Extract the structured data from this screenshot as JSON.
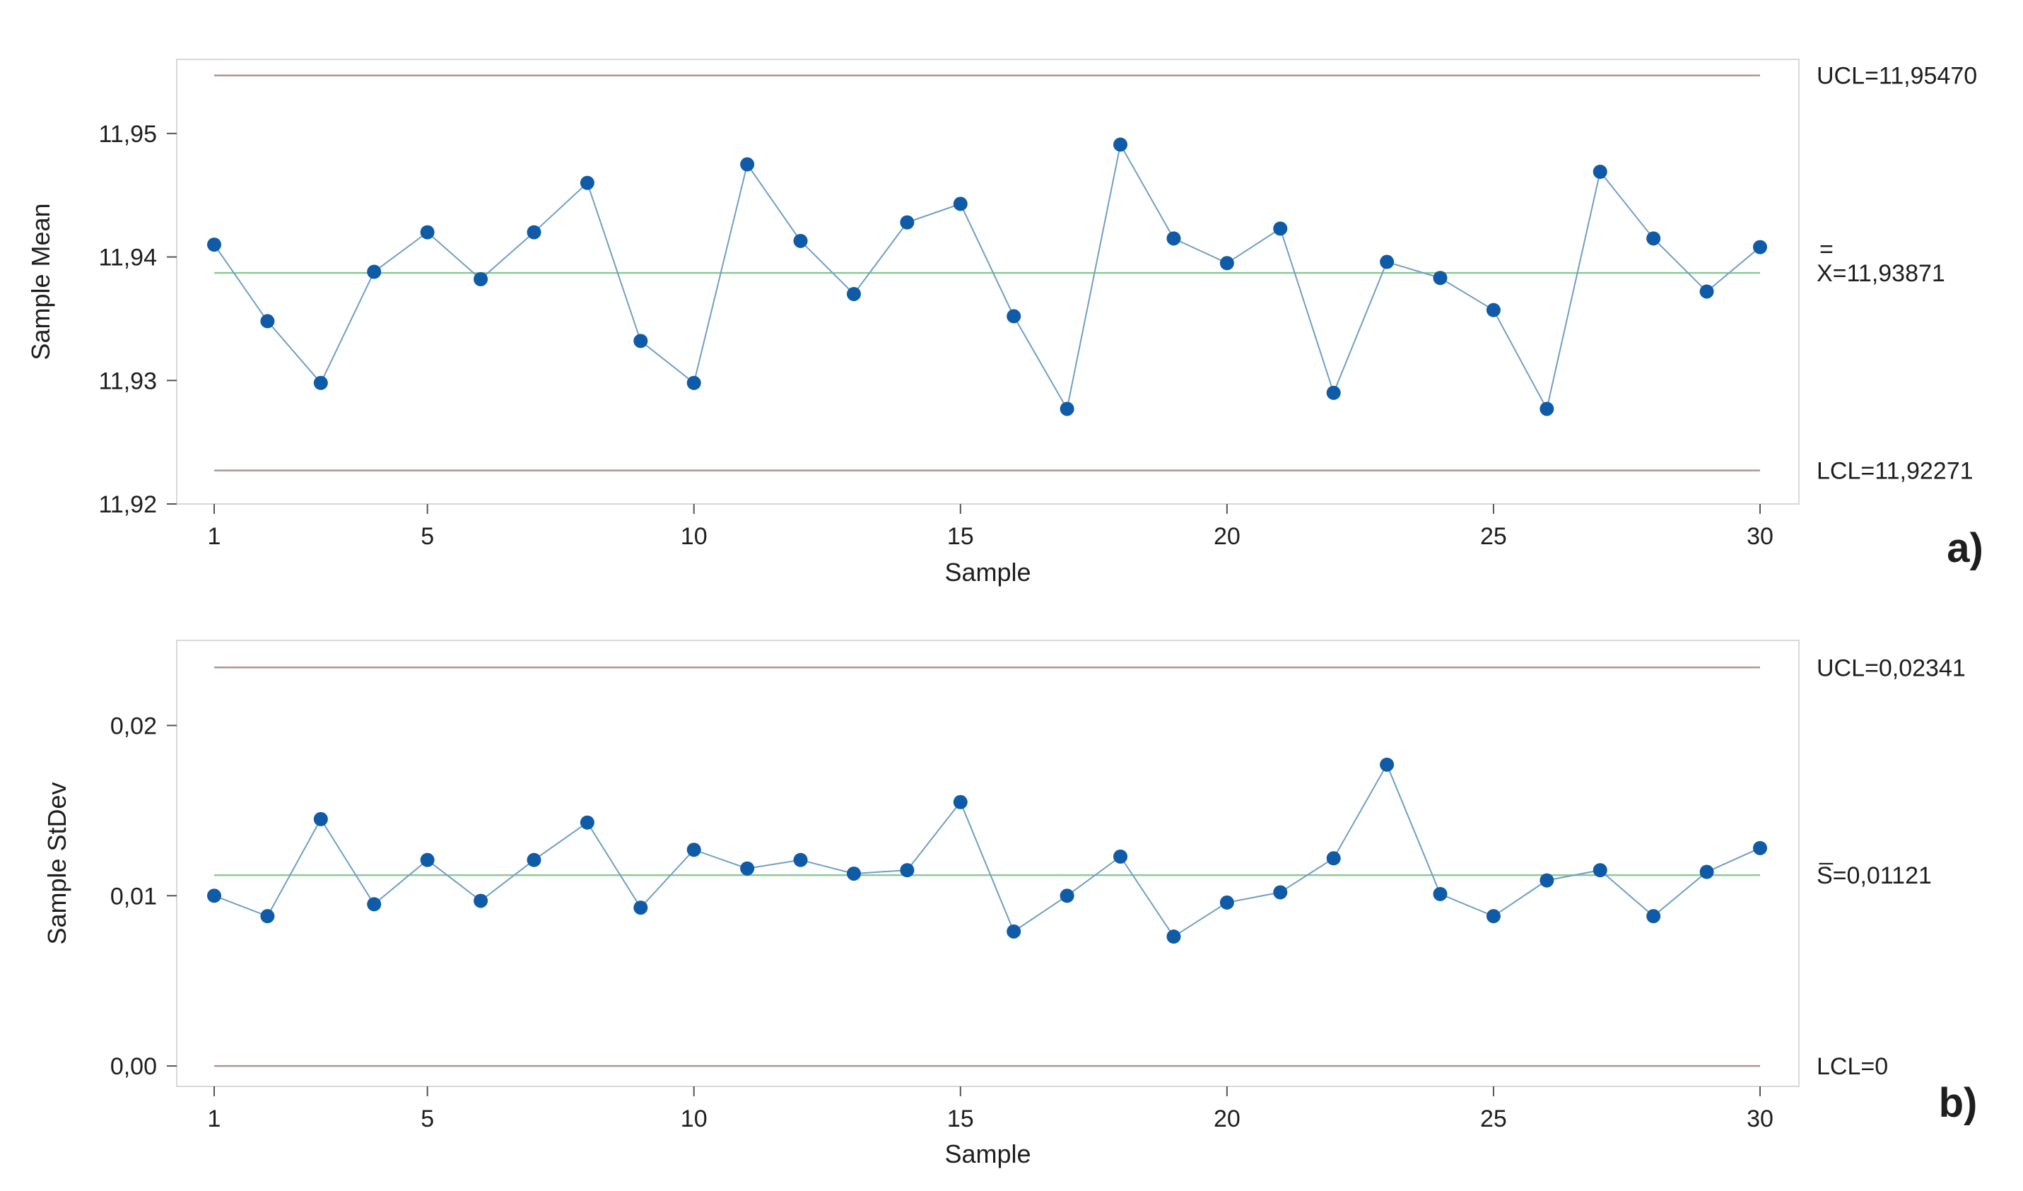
{
  "chart_data": [
    {
      "panel_label": "a)",
      "type": "line",
      "xlabel": "Sample",
      "ylabel": "Sample Mean",
      "x_ticks": [
        "1",
        "5",
        "10",
        "15",
        "20",
        "25",
        "30"
      ],
      "y_ticks": [
        "11,92",
        "11,93",
        "11,94",
        "11,95"
      ],
      "xlim": [
        1,
        30
      ],
      "ylim": [
        11.92,
        11.956
      ],
      "grid": false,
      "control_limits": {
        "ucl": {
          "label": "UCL=11,95470",
          "value": 11.9547
        },
        "center": {
          "label": "X=11,93871",
          "overline_mark": "=",
          "value": 11.93871
        },
        "lcl": {
          "label": "LCL=11,92271",
          "value": 11.92271
        }
      },
      "x": [
        1,
        2,
        3,
        4,
        5,
        6,
        7,
        8,
        9,
        10,
        11,
        12,
        13,
        14,
        15,
        16,
        17,
        18,
        19,
        20,
        21,
        22,
        23,
        24,
        25,
        26,
        27,
        28,
        29,
        30
      ],
      "values": [
        11.941,
        11.9348,
        11.9298,
        11.9388,
        11.942,
        11.9382,
        11.942,
        11.946,
        11.9332,
        11.9298,
        11.9475,
        11.9413,
        11.937,
        11.9428,
        11.9443,
        11.9352,
        11.9277,
        11.9491,
        11.9415,
        11.9395,
        11.9423,
        11.929,
        11.9396,
        11.9383,
        11.9357,
        11.9277,
        11.9469,
        11.9415,
        11.9372,
        11.9408
      ],
      "colors": {
        "series": "#0f5ba8",
        "line": "#6f9fc4",
        "center": "#8fc896",
        "limits": "#b09494",
        "frame": "#d8d8d8"
      }
    },
    {
      "panel_label": "b)",
      "type": "line",
      "xlabel": "Sample",
      "ylabel": "Sample StDev",
      "x_ticks": [
        "1",
        "5",
        "10",
        "15",
        "20",
        "25",
        "30"
      ],
      "y_ticks": [
        "0,00",
        "0,01",
        "0,02"
      ],
      "xlim": [
        1,
        30
      ],
      "ylim": [
        -0.0012,
        0.025
      ],
      "grid": false,
      "control_limits": {
        "ucl": {
          "label": "UCL=0,02341",
          "value": 0.02341
        },
        "center": {
          "label": "S=0,01121",
          "overline_mark": "_",
          "value": 0.01121
        },
        "lcl": {
          "label": "LCL=0",
          "value": 0
        }
      },
      "x": [
        1,
        2,
        3,
        4,
        5,
        6,
        7,
        8,
        9,
        10,
        11,
        12,
        13,
        14,
        15,
        16,
        17,
        18,
        19,
        20,
        21,
        22,
        23,
        24,
        25,
        26,
        27,
        28,
        29,
        30
      ],
      "values": [
        0.01,
        0.0088,
        0.0145,
        0.0095,
        0.0121,
        0.0097,
        0.0121,
        0.0143,
        0.0093,
        0.0127,
        0.0116,
        0.0121,
        0.0113,
        0.0115,
        0.0155,
        0.0079,
        0.01,
        0.0123,
        0.0076,
        0.0096,
        0.0102,
        0.0122,
        0.0177,
        0.0101,
        0.0088,
        0.0109,
        0.0115,
        0.0088,
        0.0114,
        0.0128
      ],
      "colors": {
        "series": "#0f5ba8",
        "line": "#6f9fc4",
        "center": "#8fc896",
        "limits": "#b09494",
        "frame": "#d8d8d8"
      }
    }
  ]
}
